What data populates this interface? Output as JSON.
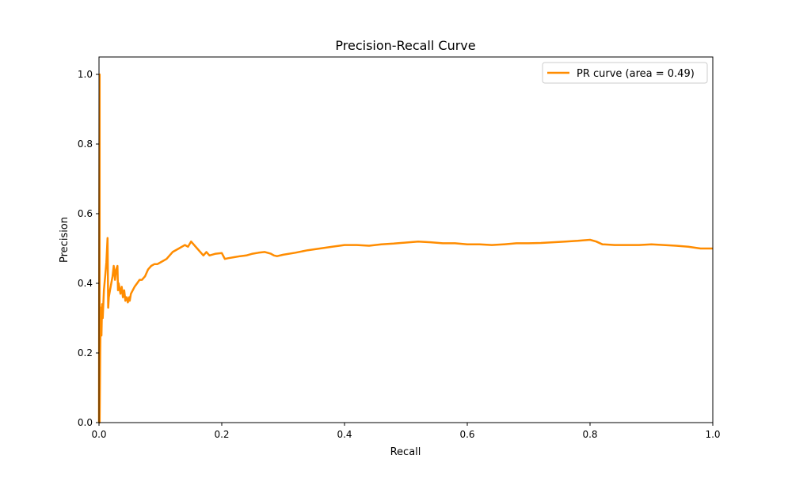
{
  "chart_data": {
    "type": "line",
    "title": "Precision-Recall Curve",
    "xlabel": "Recall",
    "ylabel": "Precision",
    "xlim": [
      0.0,
      1.0
    ],
    "ylim": [
      0.0,
      1.05
    ],
    "xticks": [
      "0.0",
      "0.2",
      "0.4",
      "0.6",
      "0.8",
      "1.0"
    ],
    "yticks": [
      "0.0",
      "0.2",
      "0.4",
      "0.6",
      "0.8",
      "1.0"
    ],
    "grid": false,
    "legend_position": "top-right",
    "series": [
      {
        "name": "PR curve (area = 0.49)",
        "color": "#ff8c00",
        "x": [
          0.0,
          0.0005,
          0.001,
          0.001,
          0.002,
          0.003,
          0.004,
          0.005,
          0.006,
          0.008,
          0.01,
          0.012,
          0.014,
          0.015,
          0.016,
          0.018,
          0.02,
          0.022,
          0.024,
          0.026,
          0.028,
          0.03,
          0.031,
          0.032,
          0.033,
          0.035,
          0.037,
          0.039,
          0.041,
          0.043,
          0.045,
          0.047,
          0.049,
          0.05,
          0.052,
          0.055,
          0.058,
          0.062,
          0.066,
          0.07,
          0.075,
          0.08,
          0.085,
          0.09,
          0.095,
          0.1,
          0.11,
          0.12,
          0.13,
          0.14,
          0.145,
          0.15,
          0.155,
          0.16,
          0.165,
          0.17,
          0.175,
          0.18,
          0.19,
          0.2,
          0.205,
          0.21,
          0.22,
          0.23,
          0.24,
          0.25,
          0.26,
          0.27,
          0.28,
          0.285,
          0.29,
          0.3,
          0.32,
          0.34,
          0.36,
          0.38,
          0.4,
          0.42,
          0.44,
          0.46,
          0.48,
          0.5,
          0.52,
          0.54,
          0.56,
          0.58,
          0.6,
          0.62,
          0.64,
          0.66,
          0.68,
          0.7,
          0.72,
          0.74,
          0.76,
          0.78,
          0.8,
          0.81,
          0.82,
          0.84,
          0.86,
          0.88,
          0.9,
          0.92,
          0.94,
          0.96,
          0.98,
          1.0
        ],
        "y": [
          0.0,
          0.6,
          1.0,
          0.0,
          0.2,
          0.33,
          0.25,
          0.34,
          0.3,
          0.38,
          0.42,
          0.46,
          0.53,
          0.33,
          0.36,
          0.38,
          0.4,
          0.42,
          0.45,
          0.41,
          0.44,
          0.45,
          0.38,
          0.4,
          0.39,
          0.37,
          0.39,
          0.36,
          0.38,
          0.35,
          0.36,
          0.345,
          0.36,
          0.35,
          0.37,
          0.38,
          0.39,
          0.4,
          0.41,
          0.41,
          0.42,
          0.44,
          0.45,
          0.455,
          0.455,
          0.46,
          0.47,
          0.49,
          0.5,
          0.51,
          0.505,
          0.52,
          0.51,
          0.5,
          0.49,
          0.48,
          0.49,
          0.48,
          0.485,
          0.487,
          0.47,
          0.472,
          0.475,
          0.478,
          0.48,
          0.485,
          0.488,
          0.49,
          0.485,
          0.48,
          0.478,
          0.482,
          0.488,
          0.495,
          0.5,
          0.505,
          0.51,
          0.51,
          0.508,
          0.512,
          0.514,
          0.517,
          0.52,
          0.518,
          0.515,
          0.515,
          0.512,
          0.512,
          0.51,
          0.512,
          0.515,
          0.515,
          0.516,
          0.518,
          0.52,
          0.522,
          0.525,
          0.52,
          0.512,
          0.51,
          0.51,
          0.51,
          0.512,
          0.51,
          0.508,
          0.505,
          0.5,
          0.5
        ]
      }
    ]
  }
}
